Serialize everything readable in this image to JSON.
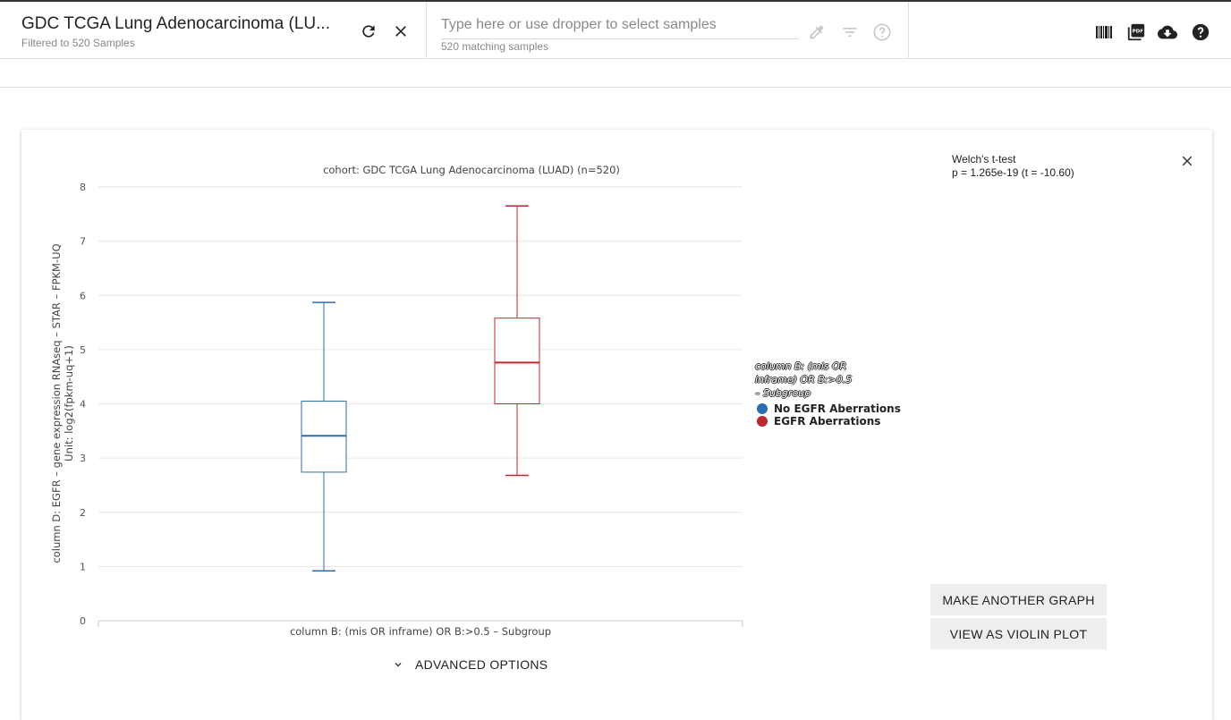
{
  "header": {
    "cohort_title": "GDC TCGA Lung Adenocarcinoma (LU...",
    "cohort_subtitle": "Filtered to 520 Samples",
    "search_placeholder": "Type here or use dropper to select samples",
    "search_count": "520 matching samples",
    "icons": [
      "refresh-icon",
      "close-icon",
      "dropper-icon",
      "filter-icon",
      "help-circle-icon",
      "barcode-icon",
      "pdf-icon",
      "cloud-download-icon",
      "help-icon"
    ]
  },
  "stats": {
    "test_name": "Welch's t-test",
    "result": "p = 1.265e-19 (t = -10.60)"
  },
  "legend": {
    "title": "column B: (mis OR inframe) OR B:>0.5 – Subgroup",
    "items": [
      {
        "label": "No EGFR Aberrations",
        "color": "#2a6fb0"
      },
      {
        "label": "EGFR Aberrations",
        "color": "#c0272d"
      }
    ]
  },
  "buttons": {
    "make_another": "MAKE ANOTHER GRAPH",
    "violin": "VIEW AS VIOLIN PLOT",
    "advanced": "ADVANCED OPTIONS"
  },
  "chart_data": {
    "type": "box",
    "title": "cohort: GDC TCGA Lung Adenocarcinoma (LUAD) (n=520)",
    "xlabel": "column B: (mis OR inframe) OR B:>0.5 – Subgroup",
    "ylabel": "column D: EGFR – gene expression RNAseq – STAR – FPKM-UQ",
    "ylabel2": "Unit: log2(fpkm-uq+1)",
    "ylim": [
      0,
      8
    ],
    "yticks": [
      0,
      1,
      2,
      3,
      4,
      5,
      6,
      7,
      8
    ],
    "grid": true,
    "series": [
      {
        "name": "No EGFR Aberrations",
        "color": "#2a6fb0",
        "min": 0.92,
        "q1": 2.74,
        "median": 3.41,
        "q3": 4.05,
        "max": 5.87
      },
      {
        "name": "EGFR Aberrations",
        "color": "#c0272d",
        "min": 2.68,
        "q1": 4.0,
        "median": 4.76,
        "q3": 5.58,
        "max": 7.65
      }
    ]
  }
}
